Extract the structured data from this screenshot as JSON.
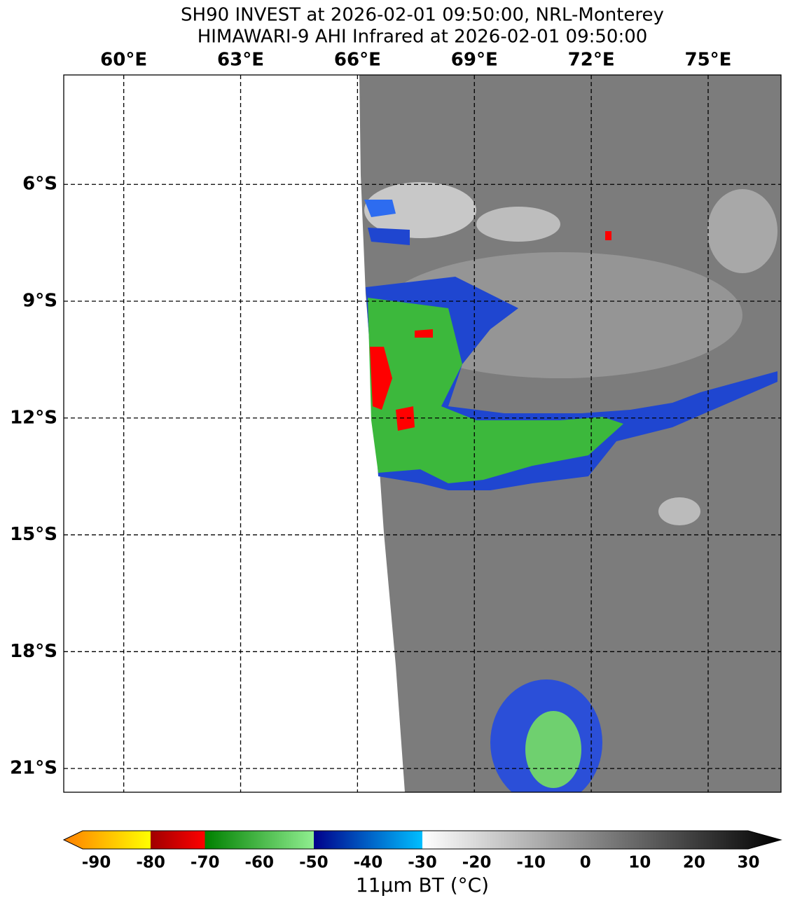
{
  "title": [
    "SH90 INVEST at 2026-02-01 09:50:00, NRL-Monterey",
    "HIMAWARI-9 AHI Infrared at 2026-02-01 09:50:00"
  ],
  "map": {
    "lonlim": [
      58.46,
      76.87
    ],
    "latlim": [
      -3.19,
      -21.61
    ],
    "grid": true,
    "lonticks": [
      {
        "value": 60,
        "label": "60°E"
      },
      {
        "value": 63,
        "label": "63°E"
      },
      {
        "value": 66,
        "label": "66°E"
      },
      {
        "value": 69,
        "label": "69°E"
      },
      {
        "value": 72,
        "label": "72°E"
      },
      {
        "value": 75,
        "label": "75°E"
      }
    ],
    "latticks": [
      {
        "value": -6,
        "label": "6°S"
      },
      {
        "value": -9,
        "label": "9°S"
      },
      {
        "value": -12,
        "label": "12°S"
      },
      {
        "value": -15,
        "label": "15°S"
      },
      {
        "value": -18,
        "label": "18°S"
      },
      {
        "value": -21,
        "label": "21°S"
      }
    ]
  },
  "colorbar": {
    "label": "11μm BT (°C)",
    "clim": [
      -96,
      36
    ],
    "ticks": [
      -90,
      -80,
      -70,
      -60,
      -50,
      -40,
      -30,
      -20,
      -10,
      0,
      10,
      20,
      30
    ],
    "segments": [
      {
        "from": -96,
        "to": -80,
        "colors": [
          "#ff8000",
          "#ffff00"
        ]
      },
      {
        "from": -80,
        "to": -70,
        "colors": [
          "#a00000",
          "#ff0000"
        ]
      },
      {
        "from": -70,
        "to": -50,
        "colors": [
          "#008000",
          "#90ee90"
        ]
      },
      {
        "from": -50,
        "to": -30,
        "colors": [
          "#00008b",
          "#00bfff"
        ]
      },
      {
        "from": -30,
        "to": 36,
        "colors": [
          "#ffffff",
          "#000000"
        ]
      }
    ]
  }
}
